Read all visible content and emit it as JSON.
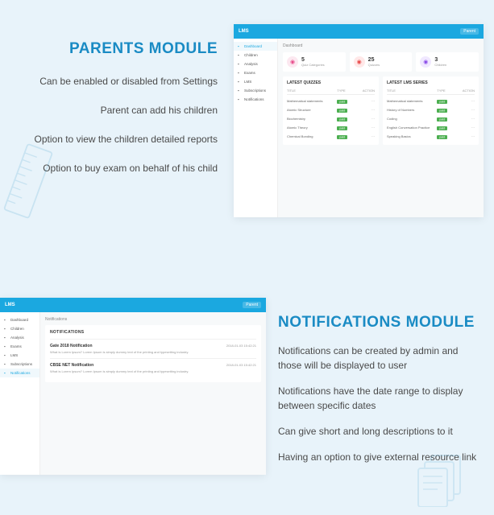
{
  "colors": {
    "background": "#e8f3fa",
    "accent": "#1a8bc4",
    "header_bar": "#1ba8e0",
    "text_body": "#4a4a4a",
    "badge_green": "#4caf50"
  },
  "top": {
    "title": "PARENTS MODULE",
    "features": [
      "Can be enabled or disabled from Settings",
      "Parent can add his children",
      "Option to view the children detailed reports",
      "Option to buy exam on behalf of his child"
    ]
  },
  "bottom": {
    "title": "NOTIFICATIONS MODULE",
    "features": [
      "Notifications can be created by admin and those will be displayed to user",
      "Notifications have the date range to display between specific dates",
      "Can give short and long descriptions to it",
      "Having an option to give external resource link"
    ]
  },
  "dashboard": {
    "logo": "LMS",
    "header_badge": "Parent",
    "breadcrumb": "Dashboard",
    "sidebar": [
      {
        "label": "Dashboard",
        "active": true
      },
      {
        "label": "Children",
        "active": false
      },
      {
        "label": "Analysis",
        "active": false
      },
      {
        "label": "Exams",
        "active": false
      },
      {
        "label": "LMS",
        "active": false
      },
      {
        "label": "Subscriptions",
        "active": false
      },
      {
        "label": "Notifications",
        "active": false
      }
    ],
    "stats": [
      {
        "num": "5",
        "label": "Quiz Categories",
        "icon_class": "c1"
      },
      {
        "num": "25",
        "label": "Quizzes",
        "icon_class": "c2"
      },
      {
        "num": "3",
        "label": "Children",
        "icon_class": "c3"
      }
    ],
    "table1": {
      "title": "LATEST QUIZZES",
      "columns": [
        "TITLE",
        "TYPE",
        "ACTION"
      ],
      "rows": [
        {
          "title": "Mathematical statements",
          "badge": "paid"
        },
        {
          "title": "Atomic Structure",
          "badge": "paid"
        },
        {
          "title": "Biochemistry",
          "badge": "paid"
        },
        {
          "title": "Atomic Theory",
          "badge": "paid"
        },
        {
          "title": "Chemical Bonding",
          "badge": "paid"
        }
      ]
    },
    "table2": {
      "title": "LATEST LMS SERIES",
      "columns": [
        "TITLE",
        "TYPE",
        "ACTION"
      ],
      "rows": [
        {
          "title": "Mathematical statements",
          "badge": "paid"
        },
        {
          "title": "History of Numbers",
          "badge": "paid"
        },
        {
          "title": "Coding",
          "badge": "paid"
        },
        {
          "title": "English Conversation Practice",
          "badge": "paid"
        },
        {
          "title": "Speaking Basics",
          "badge": "paid"
        }
      ]
    }
  },
  "notif_screen": {
    "logo": "LMS",
    "header_badge": "Parent",
    "breadcrumb": "Notifications",
    "sidebar": [
      {
        "label": "Dashboard",
        "active": false
      },
      {
        "label": "Children",
        "active": false
      },
      {
        "label": "Analysis",
        "active": false
      },
      {
        "label": "Exams",
        "active": false
      },
      {
        "label": "LMS",
        "active": false
      },
      {
        "label": "Subscriptions",
        "active": false
      },
      {
        "label": "Notifications",
        "active": true
      }
    ],
    "panel_title": "NOTIFICATIONS",
    "items": [
      {
        "title": "Gate 2018 Notification",
        "date": "2018-01-03 15:42:21",
        "desc": "What is Lorem Ipsum? Lorem Ipsum is simply dummy text of the printing and typesetting industry."
      },
      {
        "title": "CBSE NET Notification",
        "date": "2018-01-03 15:42:21",
        "desc": "What is Lorem Ipsum? Lorem Ipsum is simply dummy text of the printing and typesetting industry."
      }
    ]
  }
}
